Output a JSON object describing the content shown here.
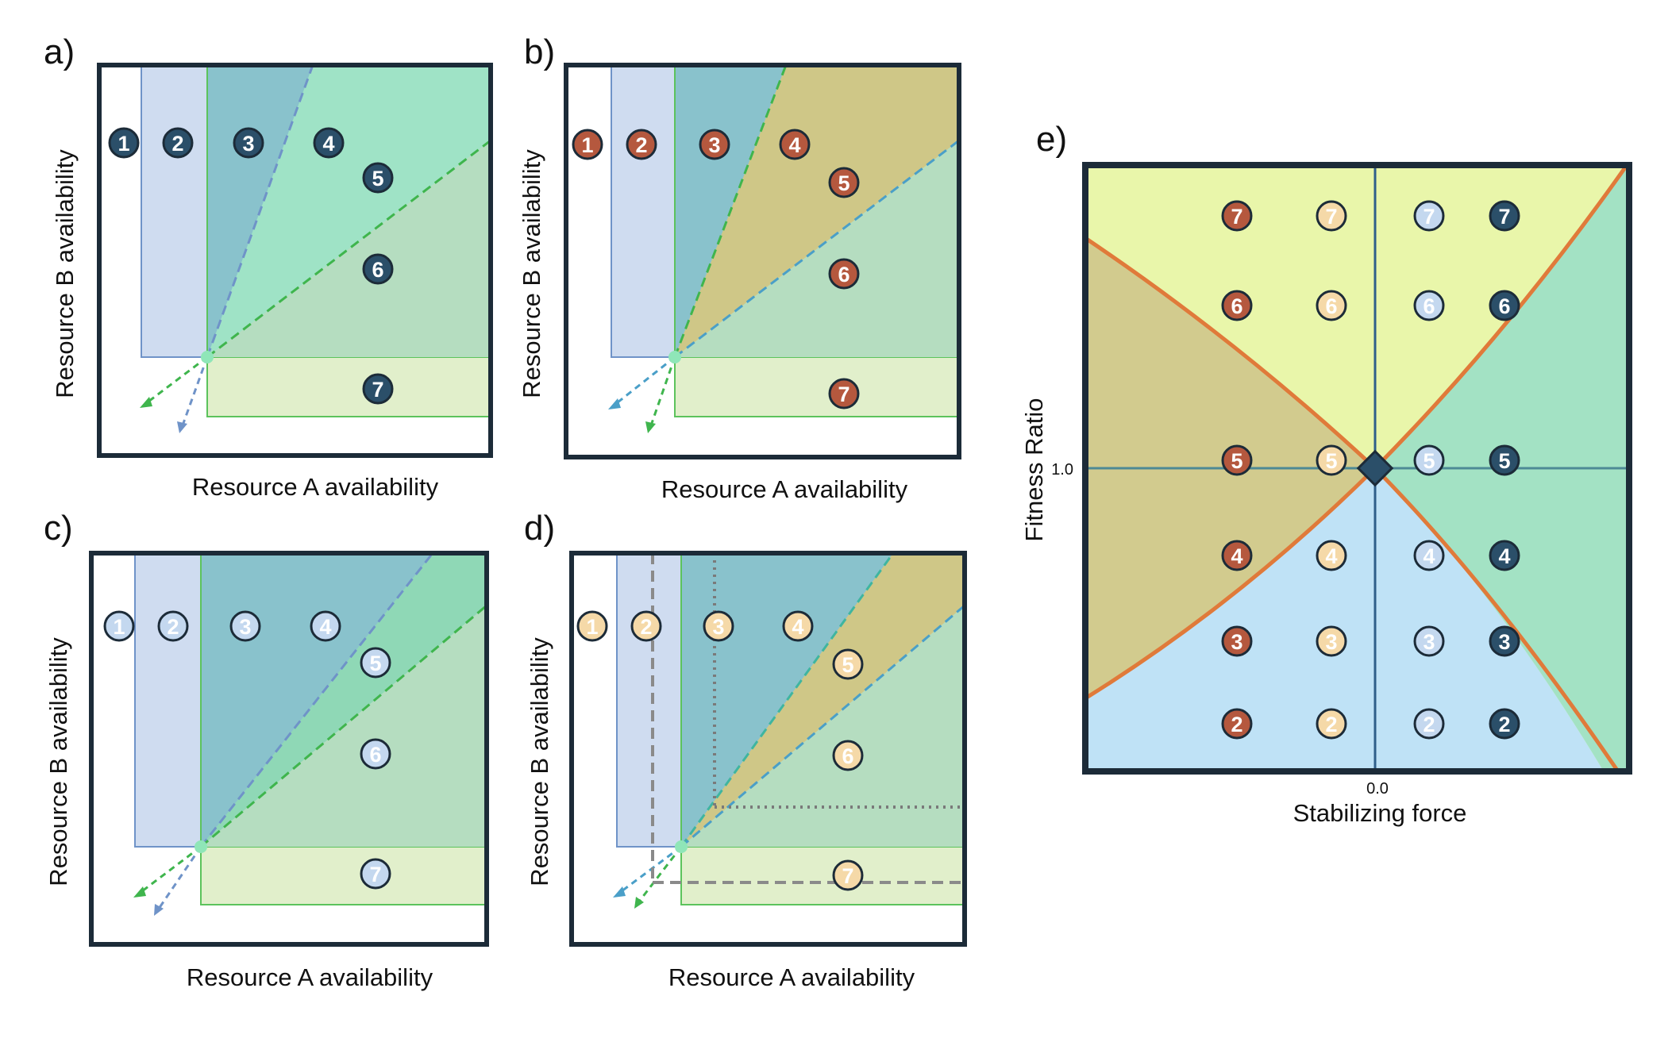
{
  "panels": [
    {
      "key": "a",
      "label": "a)",
      "xlabel": "Resource A availability",
      "ylabel": "Resource B availability",
      "marker_fill": "#2b4f69",
      "marker_text": "#ffffff",
      "numbers": [
        "1",
        "2",
        "3",
        "4",
        "5",
        "6",
        "7"
      ]
    },
    {
      "key": "b",
      "label": "b)",
      "xlabel": "Resource A availability",
      "ylabel": "Resource B availability",
      "marker_fill": "#b5583e",
      "marker_text": "#ffffff",
      "numbers": [
        "1",
        "2",
        "3",
        "4",
        "5",
        "6",
        "7"
      ]
    },
    {
      "key": "c",
      "label": "c)",
      "xlabel": "Resource A availability",
      "ylabel": "Resource B availability",
      "marker_fill": "#c4d8ef",
      "marker_text": "#ffffff",
      "numbers": [
        "1",
        "2",
        "3",
        "4",
        "5",
        "6",
        "7"
      ]
    },
    {
      "key": "d",
      "label": "d)",
      "xlabel": "Resource A availability",
      "ylabel": "Resource B availability",
      "marker_fill": "#f5d9a8",
      "marker_text": "#ffffff",
      "numbers": [
        "1",
        "2",
        "3",
        "4",
        "5",
        "6",
        "7"
      ]
    }
  ],
  "panel_e": {
    "label": "e)",
    "xlabel": "Stabilizing force",
    "ylabel": "Fitness Ratio",
    "x_tick": "0.0",
    "y_tick": "1.0",
    "columns": [
      {
        "fill": "#b5583e",
        "text": "#ffffff"
      },
      {
        "fill": "#f5d9a8",
        "text": "#ffffff"
      },
      {
        "fill": "#c4d8ef",
        "text": "#ffffff"
      },
      {
        "fill": "#2b4f69",
        "text": "#ffffff"
      }
    ],
    "rows": [
      "7",
      "6",
      "5",
      "4",
      "3",
      "2"
    ]
  },
  "colors": {
    "blue_region": "#cfdcf0",
    "teal_region": "#89c2cc",
    "green_region": "#9fe3c6",
    "sage_region": "#b5ddc0",
    "lightgreen_region": "#e1efcb",
    "olive_region": "#cfc787",
    "e_yellow": "#e9f6aa",
    "e_olive": "#d2cb8e",
    "e_blue": "#bfe2f6",
    "e_green": "#a3e2c4",
    "orange_curve": "#e07a3a",
    "frame": "#1c2b38"
  }
}
